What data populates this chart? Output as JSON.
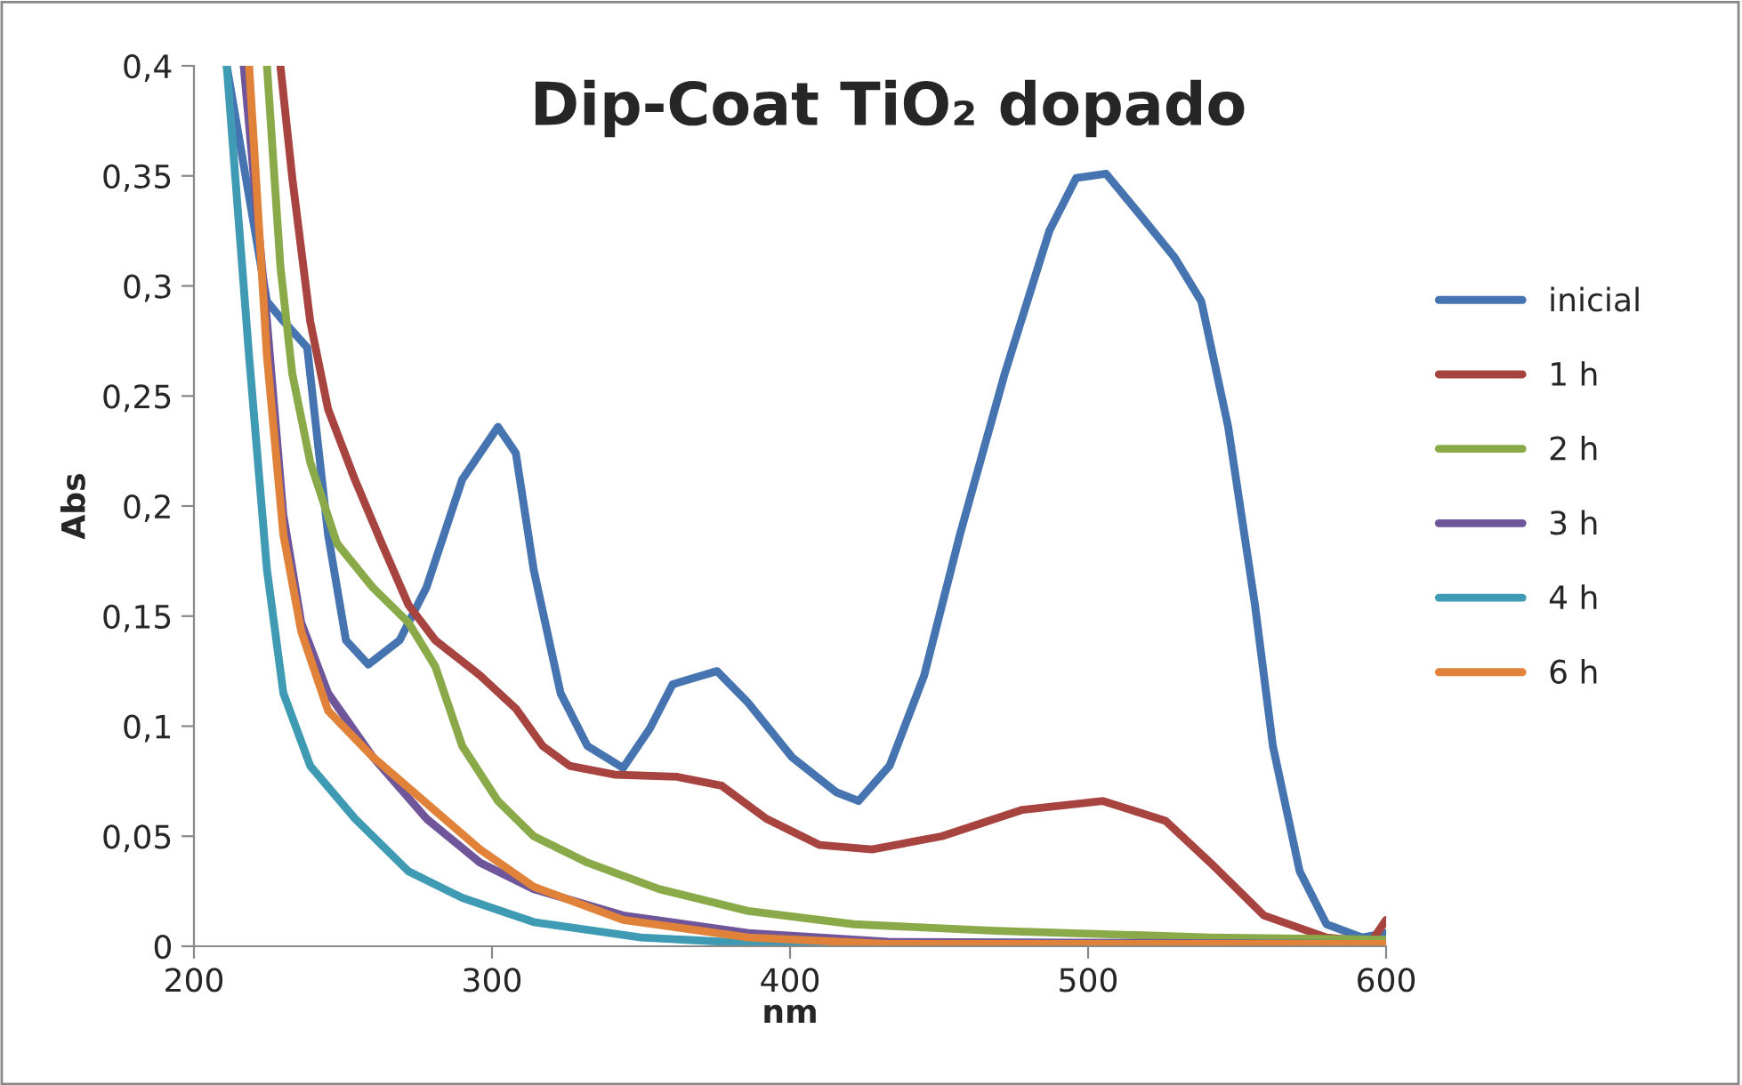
{
  "chart_data": {
    "type": "line",
    "title": "Dip-Coat TiO₂ dopado",
    "xlabel": "nm",
    "ylabel": "Abs",
    "xlim": [
      200,
      600
    ],
    "xticks": [
      200,
      300,
      400,
      500,
      600
    ],
    "ylim": [
      0,
      0.4
    ],
    "yticks": [
      {
        "value": 0,
        "label": "0"
      },
      {
        "value": 0.05,
        "label": "0,05"
      },
      {
        "value": 0.1,
        "label": "0,1"
      },
      {
        "value": 0.15,
        "label": "0,15"
      },
      {
        "value": 0.2,
        "label": "0,2"
      },
      {
        "value": 0.25,
        "label": "0,25"
      },
      {
        "value": 0.3,
        "label": "0,3"
      },
      {
        "value": 0.35,
        "label": "0,35"
      },
      {
        "value": 0.4,
        "label": "0,4"
      }
    ],
    "grid": false,
    "legend": "right",
    "marker": "none",
    "line_style": "solid",
    "series": [
      {
        "name": "inicial",
        "color": "#4674b0",
        "x": [
          211,
          224.5,
          230,
          238,
          245,
          251,
          258.5,
          269,
          278,
          290,
          302,
          308,
          314,
          323,
          332,
          344,
          353,
          360.6,
          375.5,
          385.7,
          400.6,
          415.5,
          423,
          433.4,
          445,
          457,
          472,
          487,
          496,
          506,
          517,
          529,
          538,
          547,
          556,
          562,
          571,
          580,
          592,
          600
        ],
        "values": [
          0.4,
          0.293,
          0.284,
          0.272,
          0.187,
          0.139,
          0.128,
          0.139,
          0.163,
          0.212,
          0.236,
          0.224,
          0.171,
          0.115,
          0.091,
          0.081,
          0.099,
          0.119,
          0.125,
          0.111,
          0.086,
          0.07,
          0.066,
          0.082,
          0.123,
          0.187,
          0.26,
          0.325,
          0.349,
          0.351,
          0.333,
          0.313,
          0.293,
          0.236,
          0.155,
          0.091,
          0.034,
          0.01,
          0.004,
          0.006
        ]
      },
      {
        "name": "1 h",
        "color": "#a84440",
        "x": [
          229,
          233,
          239,
          245,
          254,
          263,
          272,
          281,
          296,
          308,
          317,
          326,
          341,
          362,
          377,
          392,
          410,
          427.5,
          451,
          478,
          505,
          526,
          541,
          559,
          580,
          595,
          600
        ],
        "values": [
          0.4,
          0.349,
          0.284,
          0.244,
          0.212,
          0.183,
          0.155,
          0.139,
          0.123,
          0.108,
          0.091,
          0.082,
          0.078,
          0.077,
          0.073,
          0.058,
          0.046,
          0.044,
          0.05,
          0.062,
          0.066,
          0.057,
          0.038,
          0.014,
          0.004,
          0.002,
          0.012
        ]
      },
      {
        "name": "2 h",
        "color": "#8aaa4a",
        "x": [
          224.5,
          229,
          233,
          239,
          248,
          260,
          272,
          281,
          290,
          302,
          314,
          332,
          356,
          386,
          421.5,
          469,
          541,
          600
        ],
        "values": [
          0.4,
          0.309,
          0.26,
          0.22,
          0.183,
          0.163,
          0.147,
          0.127,
          0.091,
          0.066,
          0.05,
          0.038,
          0.026,
          0.016,
          0.01,
          0.007,
          0.004,
          0.003
        ]
      },
      {
        "name": "3 h",
        "color": "#6f559a",
        "x": [
          216.7,
          224.5,
          230,
          236,
          245,
          260,
          278,
          296,
          314,
          344,
          386,
          433,
          600
        ],
        "values": [
          0.4,
          0.284,
          0.196,
          0.147,
          0.115,
          0.086,
          0.058,
          0.038,
          0.026,
          0.014,
          0.006,
          0.002,
          0.001
        ]
      },
      {
        "name": "4 h",
        "color": "#3e9bb3",
        "x": [
          211,
          218.5,
          224.5,
          230,
          239,
          254,
          272,
          290,
          314,
          350,
          392,
          600
        ],
        "values": [
          0.4,
          0.268,
          0.171,
          0.115,
          0.082,
          0.058,
          0.034,
          0.022,
          0.011,
          0.004,
          0.001,
          0.001
        ]
      },
      {
        "name": "6 h",
        "color": "#e0823a",
        "x": [
          218.5,
          224.5,
          230,
          236,
          245,
          260,
          278,
          296,
          314,
          344,
          386,
          433,
          600
        ],
        "values": [
          0.4,
          0.268,
          0.187,
          0.143,
          0.107,
          0.086,
          0.065,
          0.044,
          0.027,
          0.012,
          0.004,
          0.001,
          0.001
        ]
      }
    ]
  }
}
